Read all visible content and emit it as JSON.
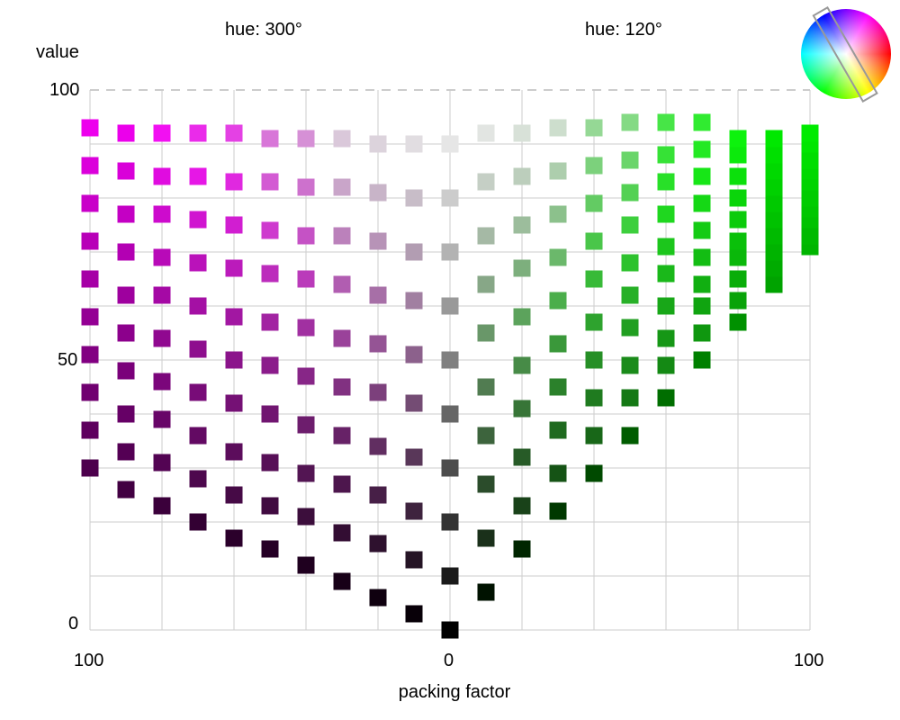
{
  "chart_data": {
    "type": "scatter",
    "title_left": "hue: 300°",
    "title_right": "hue: 120°",
    "ylabel": "value",
    "xlabel": "packing factor",
    "x_tick_labels": {
      "left": "100",
      "center": "0",
      "right": "100"
    },
    "y_tick_labels": [
      "0",
      "50",
      "100"
    ],
    "ylim": [
      0,
      100
    ],
    "xlim": [
      -100,
      100
    ],
    "grid": true,
    "x_gridlines": [
      -100,
      -80,
      -60,
      -40,
      -20,
      0,
      20,
      40,
      60,
      80,
      100
    ],
    "y_gridlines": [
      0,
      10,
      20,
      30,
      40,
      50,
      60,
      70,
      80,
      90
    ],
    "series": [
      {
        "hue": 300,
        "columns": [
          {
            "x": -100,
            "points": [
              [
                30,
                100
              ],
              [
                37,
                100
              ],
              [
                44,
                100
              ],
              [
                51,
                100
              ],
              [
                58,
                100
              ],
              [
                65,
                100
              ],
              [
                72,
                100
              ],
              [
                79,
                100
              ],
              [
                86,
                100
              ],
              [
                93,
                100
              ]
            ]
          },
          {
            "x": -90,
            "points": [
              [
                26,
                100
              ],
              [
                33,
                100
              ],
              [
                40,
                100
              ],
              [
                48,
                100
              ],
              [
                55,
                100
              ],
              [
                62,
                100
              ],
              [
                70,
                100
              ],
              [
                77,
                100
              ],
              [
                85,
                100
              ],
              [
                92,
                100
              ]
            ]
          },
          {
            "x": -80,
            "points": [
              [
                23,
                100
              ],
              [
                31,
                90
              ],
              [
                39,
                90
              ],
              [
                46,
                90
              ],
              [
                54,
                90
              ],
              [
                62,
                90
              ],
              [
                69,
                90
              ],
              [
                77,
                90
              ],
              [
                84,
                90
              ],
              [
                92,
                90
              ]
            ]
          },
          {
            "x": -70,
            "points": [
              [
                20,
                100
              ],
              [
                28,
                82
              ],
              [
                36,
                82
              ],
              [
                44,
                82
              ],
              [
                52,
                82
              ],
              [
                60,
                82
              ],
              [
                68,
                82
              ],
              [
                76,
                82
              ],
              [
                84,
                82
              ],
              [
                92,
                82
              ]
            ]
          },
          {
            "x": -60,
            "points": [
              [
                17,
                100
              ],
              [
                25,
                75
              ],
              [
                33,
                75
              ],
              [
                42,
                75
              ],
              [
                50,
                75
              ],
              [
                58,
                75
              ],
              [
                67,
                75
              ],
              [
                75,
                75
              ],
              [
                83,
                75
              ],
              [
                92,
                75
              ]
            ]
          },
          {
            "x": -50,
            "points": [
              [
                15,
                100
              ],
              [
                23,
                70
              ],
              [
                31,
                70
              ],
              [
                40,
                68
              ],
              [
                49,
                66
              ],
              [
                57,
                64
              ],
              [
                66,
                62
              ],
              [
                74,
                60
              ],
              [
                83,
                58
              ],
              [
                91,
                56
              ]
            ]
          },
          {
            "x": -40,
            "points": [
              [
                12,
                100
              ],
              [
                21,
                62
              ],
              [
                29,
                60
              ],
              [
                38,
                58
              ],
              [
                47,
                56
              ],
              [
                56,
                54
              ],
              [
                65,
                52
              ],
              [
                73,
                50
              ],
              [
                82,
                48
              ],
              [
                91,
                46
              ]
            ]
          },
          {
            "x": -30,
            "points": [
              [
                9,
                100
              ],
              [
                18,
                60
              ],
              [
                27,
                55
              ],
              [
                36,
                50
              ],
              [
                45,
                45
              ],
              [
                54,
                40
              ],
              [
                64,
                35
              ],
              [
                73,
                30
              ],
              [
                82,
                25
              ],
              [
                91,
                20
              ]
            ]
          },
          {
            "x": -20,
            "points": [
              [
                6,
                100
              ],
              [
                16,
                45
              ],
              [
                25,
                40
              ],
              [
                34,
                36
              ],
              [
                44,
                32
              ],
              [
                53,
                28
              ],
              [
                62,
                24
              ],
              [
                72,
                20
              ],
              [
                81,
                16
              ],
              [
                90,
                12
              ]
            ]
          },
          {
            "x": -10,
            "points": [
              [
                3,
                100
              ],
              [
                13,
                30
              ],
              [
                22,
                27
              ],
              [
                32,
                24
              ],
              [
                42,
                21
              ],
              [
                51,
                18
              ],
              [
                61,
                15
              ],
              [
                70,
                12
              ],
              [
                80,
                9
              ],
              [
                90,
                6
              ]
            ]
          },
          {
            "x": 0,
            "points": [
              [
                0,
                0
              ],
              [
                10,
                0
              ],
              [
                20,
                0
              ],
              [
                30,
                0
              ],
              [
                40,
                0
              ],
              [
                50,
                0
              ],
              [
                60,
                0
              ],
              [
                70,
                0
              ],
              [
                80,
                0
              ],
              [
                90,
                0
              ]
            ]
          }
        ]
      },
      {
        "hue": 120,
        "columns": [
          {
            "x": 10,
            "points": [
              [
                7,
                100
              ],
              [
                17,
                30
              ],
              [
                27,
                27
              ],
              [
                36,
                24
              ],
              [
                45,
                21
              ],
              [
                55,
                18
              ],
              [
                64,
                15
              ],
              [
                73,
                12
              ],
              [
                83,
                9
              ],
              [
                92,
                6
              ]
            ]
          },
          {
            "x": 20,
            "points": [
              [
                15,
                100
              ],
              [
                23,
                45
              ],
              [
                32,
                40
              ],
              [
                41,
                36
              ],
              [
                49,
                32
              ],
              [
                58,
                28
              ],
              [
                67,
                24
              ],
              [
                75,
                20
              ],
              [
                84,
                16
              ],
              [
                92,
                12
              ]
            ]
          },
          {
            "x": 30,
            "points": [
              [
                22,
                100
              ],
              [
                29,
                60
              ],
              [
                37,
                55
              ],
              [
                45,
                50
              ],
              [
                53,
                45
              ],
              [
                61,
                40
              ],
              [
                69,
                35
              ],
              [
                77,
                30
              ],
              [
                85,
                25
              ],
              [
                93,
                20
              ]
            ]
          },
          {
            "x": 40,
            "points": [
              [
                29,
                100
              ],
              [
                36,
                62
              ],
              [
                43,
                60
              ],
              [
                50,
                58
              ],
              [
                57,
                56
              ],
              [
                65,
                54
              ],
              [
                72,
                52
              ],
              [
                79,
                50
              ],
              [
                86,
                48
              ],
              [
                93,
                46
              ]
            ]
          },
          {
            "x": 50,
            "points": [
              [
                36,
                100
              ],
              [
                43,
                70
              ],
              [
                49,
                68
              ],
              [
                56,
                66
              ],
              [
                62,
                64
              ],
              [
                68,
                62
              ],
              [
                75,
                60
              ],
              [
                81,
                58
              ],
              [
                87,
                56
              ],
              [
                94,
                54
              ]
            ]
          },
          {
            "x": 60,
            "points": [
              [
                43,
                100
              ],
              [
                49,
                75
              ],
              [
                54,
                75
              ],
              [
                60,
                75
              ],
              [
                66,
                75
              ],
              [
                71,
                75
              ],
              [
                77,
                75
              ],
              [
                83,
                75
              ],
              [
                88,
                75
              ],
              [
                94,
                75
              ]
            ]
          },
          {
            "x": 70,
            "points": [
              [
                50,
                100
              ],
              [
                55,
                82
              ],
              [
                60,
                82
              ],
              [
                64,
                82
              ],
              [
                69,
                82
              ],
              [
                74,
                82
              ],
              [
                79,
                82
              ],
              [
                84,
                82
              ],
              [
                89,
                82
              ],
              [
                94,
                82
              ]
            ]
          },
          {
            "x": 80,
            "points": [
              [
                57,
                100
              ],
              [
                61,
                90
              ],
              [
                65,
                90
              ],
              [
                69,
                90
              ],
              [
                72,
                90
              ],
              [
                76,
                90
              ],
              [
                80,
                90
              ],
              [
                84,
                90
              ],
              [
                88,
                90
              ],
              [
                91,
                90
              ]
            ]
          },
          {
            "x": 90,
            "points": [
              [
                64,
                100
              ],
              [
                67,
                100
              ],
              [
                70,
                100
              ],
              [
                73,
                100
              ],
              [
                76,
                100
              ],
              [
                79,
                100
              ],
              [
                82,
                100
              ],
              [
                85,
                100
              ],
              [
                88,
                100
              ],
              [
                91,
                100
              ]
            ]
          },
          {
            "x": 100,
            "points": [
              [
                71,
                100
              ],
              [
                73,
                100
              ],
              [
                76,
                100
              ],
              [
                78,
                100
              ],
              [
                80,
                100
              ],
              [
                83,
                100
              ],
              [
                85,
                100
              ],
              [
                87,
                100
              ],
              [
                90,
                100
              ],
              [
                92,
                100
              ]
            ]
          }
        ]
      }
    ],
    "point_color_encoding": "each point: hue of series, y = value (brightness), second number = saturation percent"
  },
  "icons": {
    "color_wheel": "hue-wheel-icon"
  }
}
